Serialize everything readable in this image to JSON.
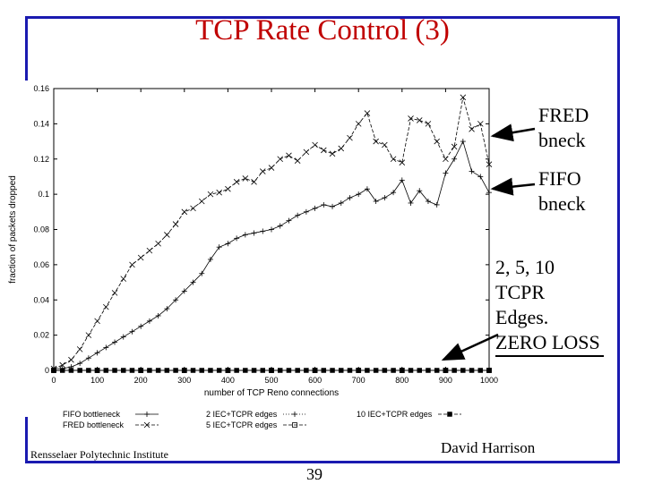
{
  "slide": {
    "title": "TCP Rate Control (3)",
    "footer_left": "Rensselaer Polytechnic Institute",
    "footer_right": "David Harrison",
    "page_number": "39"
  },
  "annotations": [
    {
      "lines": [
        "FRED",
        "bneck"
      ]
    },
    {
      "lines": [
        "FIFO",
        "bneck"
      ]
    },
    {
      "lines": [
        "2, 5, 10",
        "TCPR",
        "Edges."
      ]
    },
    {
      "lines": [
        "ZERO LOSS"
      ]
    }
  ],
  "colors": {
    "frame": "#1a1ab0",
    "title": "#c00000"
  },
  "chart_data": {
    "type": "line",
    "title": "",
    "xlabel": "number of TCP Reno connections",
    "ylabel": "fraction of packets dropped",
    "xlim": [
      0,
      1000
    ],
    "ylim": [
      0,
      0.16
    ],
    "x_ticks": [
      0,
      100,
      200,
      300,
      400,
      500,
      600,
      700,
      800,
      900,
      1000
    ],
    "y_ticks": [
      0,
      0.02,
      0.04,
      0.06,
      0.08,
      0.1,
      0.12,
      0.14,
      0.16
    ],
    "y_tick_labels": [
      "0",
      "0.02",
      "0.04",
      "0.06",
      "0.08",
      "0.1",
      "0.12",
      "0.14",
      "0.16"
    ],
    "legend_position": "bottom",
    "series": [
      {
        "name": "FIFO bottleneck",
        "marker": "plus",
        "style": "solid",
        "x": [
          0,
          20,
          40,
          60,
          80,
          100,
          120,
          140,
          160,
          180,
          200,
          220,
          240,
          260,
          280,
          300,
          320,
          340,
          360,
          380,
          400,
          420,
          440,
          460,
          480,
          500,
          520,
          540,
          560,
          580,
          600,
          620,
          640,
          660,
          680,
          700,
          720,
          740,
          760,
          780,
          800,
          820,
          840,
          860,
          880,
          900,
          920,
          940,
          960,
          980,
          1000
        ],
        "y": [
          0.001,
          0.001,
          0.002,
          0.004,
          0.007,
          0.01,
          0.013,
          0.016,
          0.019,
          0.022,
          0.025,
          0.028,
          0.031,
          0.035,
          0.04,
          0.045,
          0.05,
          0.055,
          0.063,
          0.07,
          0.072,
          0.075,
          0.077,
          0.078,
          0.079,
          0.08,
          0.082,
          0.085,
          0.088,
          0.09,
          0.092,
          0.094,
          0.093,
          0.095,
          0.098,
          0.1,
          0.103,
          0.096,
          0.098,
          0.101,
          0.108,
          0.095,
          0.102,
          0.096,
          0.094,
          0.112,
          0.12,
          0.13,
          0.113,
          0.11,
          0.101
        ]
      },
      {
        "name": "FRED bottleneck",
        "marker": "x",
        "style": "dashed",
        "x": [
          0,
          20,
          40,
          60,
          80,
          100,
          120,
          140,
          160,
          180,
          200,
          220,
          240,
          260,
          280,
          300,
          320,
          340,
          360,
          380,
          400,
          420,
          440,
          460,
          480,
          500,
          520,
          540,
          560,
          580,
          600,
          620,
          640,
          660,
          680,
          700,
          720,
          740,
          760,
          780,
          800,
          820,
          840,
          860,
          880,
          900,
          920,
          940,
          960,
          980,
          1000
        ],
        "y": [
          0.001,
          0.003,
          0.006,
          0.012,
          0.02,
          0.028,
          0.036,
          0.044,
          0.052,
          0.06,
          0.064,
          0.068,
          0.072,
          0.077,
          0.083,
          0.09,
          0.092,
          0.096,
          0.1,
          0.101,
          0.103,
          0.107,
          0.109,
          0.107,
          0.113,
          0.115,
          0.12,
          0.122,
          0.119,
          0.124,
          0.128,
          0.125,
          0.123,
          0.126,
          0.132,
          0.14,
          0.146,
          0.13,
          0.128,
          0.12,
          0.118,
          0.143,
          0.142,
          0.14,
          0.13,
          0.12,
          0.127,
          0.155,
          0.137,
          0.14,
          0.117
        ]
      },
      {
        "name": "2 IEC+TCPR edges",
        "marker": "plus",
        "style": "dotted",
        "x": [
          0,
          100,
          200,
          300,
          400,
          500,
          600,
          700,
          800,
          900,
          1000
        ],
        "y": [
          0,
          0,
          0,
          0,
          0,
          0,
          0,
          0,
          0,
          0,
          0
        ]
      },
      {
        "name": "5 IEC+TCPR edges",
        "marker": "square",
        "style": "dashed",
        "x": [
          0,
          100,
          200,
          300,
          400,
          500,
          600,
          700,
          800,
          900,
          1000
        ],
        "y": [
          0,
          0,
          0,
          0,
          0,
          0,
          0,
          0,
          0,
          0,
          0
        ]
      },
      {
        "name": "10 IEC+TCPR edges",
        "marker": "filled-square",
        "style": "dashed",
        "x": [
          0,
          20,
          40,
          60,
          80,
          100,
          120,
          140,
          160,
          180,
          200,
          220,
          240,
          260,
          280,
          300,
          320,
          340,
          360,
          380,
          400,
          420,
          440,
          460,
          480,
          500,
          520,
          540,
          560,
          580,
          600,
          620,
          640,
          660,
          680,
          700,
          720,
          740,
          760,
          780,
          800,
          820,
          840,
          860,
          880,
          900,
          920,
          940,
          960,
          980,
          1000
        ],
        "y": [
          0,
          0,
          0,
          0,
          0,
          0,
          0,
          0,
          0,
          0,
          0,
          0,
          0,
          0,
          0,
          0,
          0,
          0,
          0,
          0,
          0,
          0,
          0,
          0,
          0,
          0,
          0,
          0,
          0,
          0,
          0,
          0,
          0,
          0,
          0,
          0,
          0,
          0,
          0,
          0,
          0,
          0,
          0,
          0,
          0,
          0,
          0,
          0,
          0,
          0,
          0
        ]
      }
    ]
  }
}
